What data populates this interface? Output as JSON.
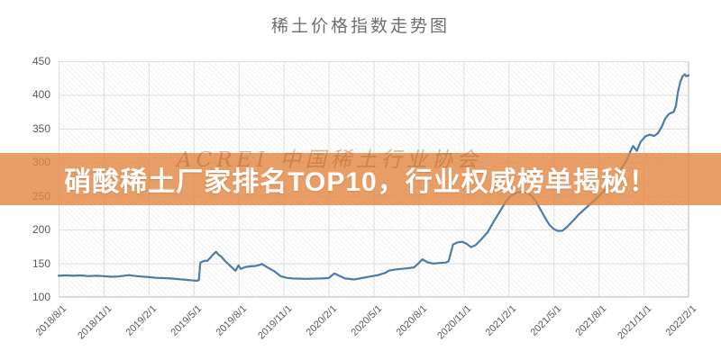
{
  "title": "稀土价格指数走势图",
  "banner": {
    "text": "硝酸稀土厂家排名TOP10，行业权威榜单揭秘！",
    "color": "#E28640",
    "opacity": 0.8,
    "text_color": "#ffffff"
  },
  "watermark": {
    "text": "ACREI 中国稀土行业协会"
  },
  "colors": {
    "line": "#4d7ba8",
    "grid": "#dedede",
    "tick_text": "#595959",
    "title_text": "#6f6f6f",
    "plot_hatch": "#f1f1f1"
  },
  "chart_data": {
    "type": "line",
    "title": "稀土价格指数走势图",
    "xlabel": "",
    "ylabel": "",
    "ylim": [
      100,
      450
    ],
    "y_ticks": [
      450,
      400,
      350,
      300,
      250,
      200,
      150,
      100
    ],
    "x_tick_labels": [
      "2018/8/1",
      "2018/11/1",
      "2019/2/1",
      "2019/5/1",
      "2019/8/1",
      "2019/11/1",
      "2020/2/1",
      "2020/5/1",
      "2020/8/1",
      "2020/11/1",
      "2021/2/1",
      "2021/5/1",
      "2021/8/1",
      "2021/11/1",
      "2022/2/1"
    ],
    "x_tick_interval_months": 3,
    "x_span_months": 42,
    "grid": true,
    "legend": "none",
    "series_name": "稀土价格指数",
    "points_note": "each point = [months since 2018/8/1, index value]",
    "points": [
      [
        0,
        131.5
      ],
      [
        0.5,
        132
      ],
      [
        1,
        131.5
      ],
      [
        1.5,
        132
      ],
      [
        2,
        131
      ],
      [
        2.5,
        131.5
      ],
      [
        3,
        131
      ],
      [
        3.5,
        130
      ],
      [
        4,
        130.5
      ],
      [
        4.7,
        132.5
      ],
      [
        5.2,
        131
      ],
      [
        6,
        129.5
      ],
      [
        6.5,
        128.5
      ],
      [
        7,
        128
      ],
      [
        7.5,
        127.5
      ],
      [
        8,
        126.5
      ],
      [
        8.5,
        125.5
      ],
      [
        9,
        124.5
      ],
      [
        9.2,
        124
      ],
      [
        9.35,
        125
      ],
      [
        9.45,
        151
      ],
      [
        9.75,
        154
      ],
      [
        9.9,
        153.5
      ],
      [
        10.1,
        158
      ],
      [
        10.3,
        163
      ],
      [
        10.5,
        167
      ],
      [
        10.7,
        162
      ],
      [
        10.85,
        160
      ],
      [
        11.1,
        153.5
      ],
      [
        11.5,
        145
      ],
      [
        11.8,
        139
      ],
      [
        12.0,
        147
      ],
      [
        12.15,
        141.5
      ],
      [
        12.45,
        144.5
      ],
      [
        12.8,
        145.5
      ],
      [
        13.1,
        146
      ],
      [
        13.4,
        147.5
      ],
      [
        13.55,
        149
      ],
      [
        14.0,
        143
      ],
      [
        14.4,
        138
      ],
      [
        14.8,
        131
      ],
      [
        15.2,
        128.5
      ],
      [
        15.6,
        127.5
      ],
      [
        16.5,
        127
      ],
      [
        17.5,
        127.5
      ],
      [
        18.0,
        128
      ],
      [
        18.4,
        135
      ],
      [
        18.7,
        131.5
      ],
      [
        19.1,
        127.5
      ],
      [
        19.7,
        126
      ],
      [
        20.2,
        128
      ],
      [
        20.8,
        130.5
      ],
      [
        21.3,
        132.5
      ],
      [
        21.8,
        136
      ],
      [
        22.0,
        139
      ],
      [
        22.5,
        141
      ],
      [
        23.2,
        142.5
      ],
      [
        23.7,
        144
      ],
      [
        24.0,
        150
      ],
      [
        24.25,
        156
      ],
      [
        24.6,
        151.5
      ],
      [
        25.0,
        149.5
      ],
      [
        25.4,
        150.5
      ],
      [
        25.8,
        151
      ],
      [
        26.0,
        153
      ],
      [
        26.3,
        178
      ],
      [
        26.6,
        181
      ],
      [
        26.9,
        182
      ],
      [
        27.2,
        179
      ],
      [
        27.5,
        174
      ],
      [
        27.8,
        177
      ],
      [
        28.2,
        186
      ],
      [
        28.6,
        196
      ],
      [
        28.9,
        208
      ],
      [
        29.2,
        219
      ],
      [
        29.5,
        230
      ],
      [
        29.8,
        241
      ],
      [
        30.1,
        249
      ],
      [
        30.4,
        253.5
      ],
      [
        30.8,
        256
      ],
      [
        31.2,
        255
      ],
      [
        31.5,
        250.5
      ],
      [
        31.8,
        243
      ],
      [
        32.1,
        231
      ],
      [
        32.4,
        219
      ],
      [
        32.7,
        208
      ],
      [
        33.0,
        201
      ],
      [
        33.3,
        198
      ],
      [
        33.6,
        198.5
      ],
      [
        33.9,
        204
      ],
      [
        34.3,
        213
      ],
      [
        34.7,
        223
      ],
      [
        35.1,
        231
      ],
      [
        35.5,
        239
      ],
      [
        35.9,
        247
      ],
      [
        36.3,
        256
      ],
      [
        36.7,
        265
      ],
      [
        37.1,
        276
      ],
      [
        37.5,
        290
      ],
      [
        37.9,
        304
      ],
      [
        38.1,
        315
      ],
      [
        38.3,
        324
      ],
      [
        38.55,
        317
      ],
      [
        38.8,
        330
      ],
      [
        39.1,
        338
      ],
      [
        39.4,
        341
      ],
      [
        39.7,
        339
      ],
      [
        39.95,
        343
      ],
      [
        40.2,
        352
      ],
      [
        40.45,
        365
      ],
      [
        40.7,
        372
      ],
      [
        41.0,
        374.5
      ],
      [
        41.15,
        383
      ],
      [
        41.3,
        405
      ],
      [
        41.45,
        419
      ],
      [
        41.6,
        427.5
      ],
      [
        41.75,
        430.5
      ],
      [
        41.85,
        427.5
      ],
      [
        42.0,
        429
      ]
    ]
  }
}
